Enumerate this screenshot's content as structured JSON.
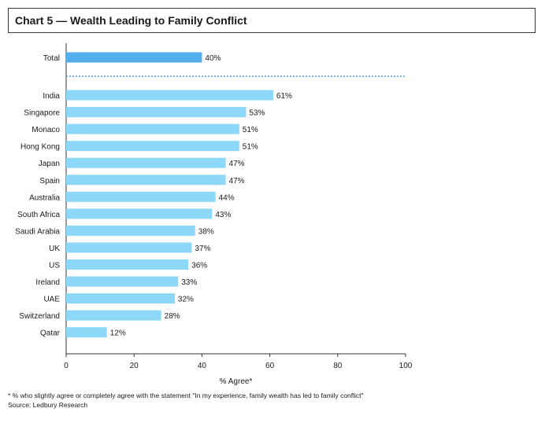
{
  "header": {
    "title": "Chart 5 — Wealth Leading to Family Conflict"
  },
  "footer": {
    "note": "* % who slightly agree or completely agree with the statement \"In my experience, family wealth has led to family conflict\"",
    "source": "Source: Ledbury Research"
  },
  "chart_data": {
    "type": "bar",
    "orientation": "horizontal",
    "title": "Chart 5 — Wealth Leading to Family Conflict",
    "xlabel": "% Agree*",
    "ylabel": "",
    "xlim": [
      0,
      100
    ],
    "xticks": [
      0,
      20,
      40,
      60,
      80,
      100
    ],
    "grid": false,
    "total": {
      "category": "Total",
      "value": 40,
      "label": "40%",
      "color": "#52aeed"
    },
    "categories": [
      "India",
      "Singapore",
      "Monaco",
      "Hong Kong",
      "Japan",
      "Spain",
      "Australia",
      "South Africa",
      "Saudi Arabia",
      "UK",
      "US",
      "Ireland",
      "UAE",
      "Switzerland",
      "Qatar"
    ],
    "values": [
      61,
      53,
      51,
      51,
      47,
      47,
      44,
      43,
      38,
      37,
      36,
      33,
      32,
      28,
      12
    ],
    "labels": [
      "61%",
      "53%",
      "51%",
      "51%",
      "47%",
      "47%",
      "44%",
      "43%",
      "38%",
      "37%",
      "36%",
      "33%",
      "32%",
      "28%",
      "12%"
    ],
    "bar_color": "#8dd8f8",
    "separator_color": "#4aa3df"
  }
}
